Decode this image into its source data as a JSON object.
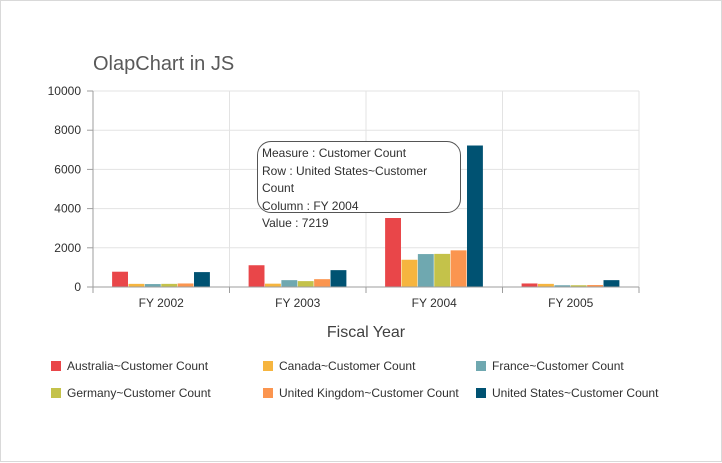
{
  "chart_data": {
    "type": "bar",
    "title": "OlapChart in JS",
    "xlabel": "Fiscal Year",
    "ylabel": "",
    "ylim": [
      0,
      10000
    ],
    "yticks": [
      0,
      2000,
      4000,
      6000,
      8000,
      10000
    ],
    "grid": true,
    "legend_position": "bottom",
    "categories": [
      "FY 2002",
      "FY 2003",
      "FY 2004",
      "FY 2005"
    ],
    "series": [
      {
        "name": "Australia~Customer Count",
        "color": "#e94649",
        "values": [
          780,
          1110,
          3520,
          180
        ]
      },
      {
        "name": "Canada~Customer Count",
        "color": "#f6b53f",
        "values": [
          160,
          170,
          1390,
          160
        ]
      },
      {
        "name": "France~Customer Count",
        "color": "#6fa8b0",
        "values": [
          150,
          350,
          1680,
          90
        ]
      },
      {
        "name": "Germany~Customer Count",
        "color": "#c4c24a",
        "values": [
          160,
          300,
          1690,
          90
        ]
      },
      {
        "name": "United Kingdom~Customer Count",
        "color": "#fb954f",
        "values": [
          180,
          400,
          1870,
          100
        ]
      },
      {
        "name": "United States~Customer Count",
        "color": "#005272",
        "values": [
          760,
          860,
          7219,
          350
        ]
      }
    ]
  },
  "tooltip": {
    "line1": "Measure : Customer Count",
    "line2": "Row : United States~Customer Count",
    "line3": "Column : FY 2004",
    "line4": "Value : 7219"
  }
}
